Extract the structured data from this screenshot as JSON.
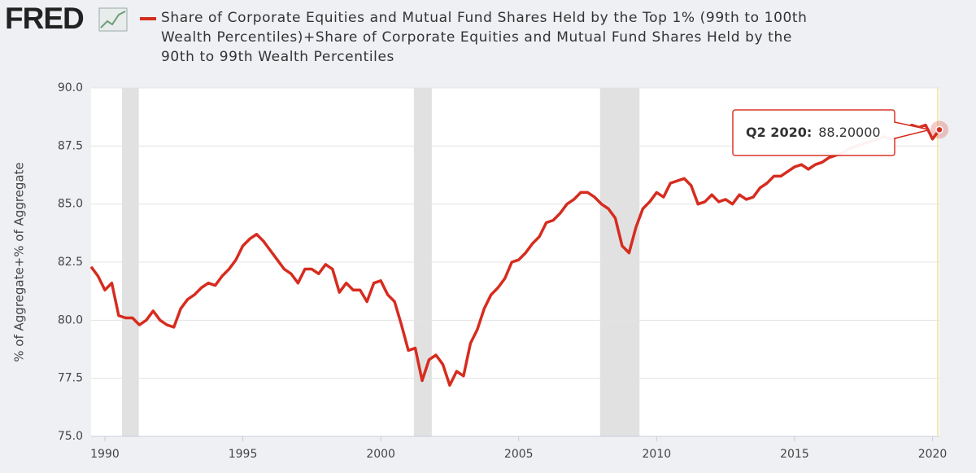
{
  "logo": "FRED",
  "chart_data": {
    "type": "line",
    "title": "Share of Corporate Equities and Mutual Fund Shares Held by the Top 1% (99th to 100th Wealth Percentiles)+Share of Corporate Equities and Mutual Fund Shares Held by the 90th to 99th Wealth Percentiles",
    "y_label": "% of Aggregate+% of Aggregate",
    "color": "#d62c1f",
    "x": [
      1989.5,
      1989.75,
      1990,
      1990.25,
      1990.5,
      1990.75,
      1991,
      1991.25,
      1991.5,
      1991.75,
      1992,
      1992.25,
      1992.5,
      1992.75,
      1993,
      1993.25,
      1993.5,
      1993.75,
      1994,
      1994.25,
      1994.5,
      1994.75,
      1995,
      1995.25,
      1995.5,
      1995.75,
      1996,
      1996.25,
      1996.5,
      1996.75,
      1997,
      1997.25,
      1997.5,
      1997.75,
      1998,
      1998.25,
      1998.5,
      1998.75,
      1999,
      1999.25,
      1999.5,
      1999.75,
      2000,
      2000.25,
      2000.5,
      2000.75,
      2001,
      2001.25,
      2001.5,
      2001.75,
      2002,
      2002.25,
      2002.5,
      2002.75,
      2003,
      2003.25,
      2003.5,
      2003.75,
      2004,
      2004.25,
      2004.5,
      2004.75,
      2005,
      2005.25,
      2005.5,
      2005.75,
      2006,
      2006.25,
      2006.5,
      2006.75,
      2007,
      2007.25,
      2007.5,
      2007.75,
      2008,
      2008.25,
      2008.5,
      2008.75,
      2009,
      2009.25,
      2009.5,
      2009.75,
      2010,
      2010.25,
      2010.5,
      2010.75,
      2011,
      2011.25,
      2011.5,
      2011.75,
      2012,
      2012.25,
      2012.5,
      2012.75,
      2013,
      2013.25,
      2013.5,
      2013.75,
      2014,
      2014.25,
      2014.5,
      2014.75,
      2015,
      2015.25,
      2015.5,
      2015.75,
      2016,
      2016.25,
      2016.5,
      2016.75,
      2017,
      2017.25,
      2017.5,
      2017.75,
      2018,
      2018.25,
      2018.5,
      2018.75,
      2019,
      2019.25,
      2019.5,
      2019.75,
      2020,
      2020.25
    ],
    "values": [
      82.3,
      81.9,
      81.3,
      81.6,
      80.2,
      80.1,
      80.1,
      79.8,
      80.0,
      80.4,
      80.0,
      79.8,
      79.7,
      80.5,
      80.9,
      81.1,
      81.4,
      81.6,
      81.5,
      81.9,
      82.2,
      82.6,
      83.2,
      83.5,
      83.7,
      83.4,
      83.0,
      82.6,
      82.2,
      82.0,
      81.6,
      82.2,
      82.2,
      82.0,
      82.4,
      82.2,
      81.2,
      81.6,
      81.3,
      81.3,
      80.8,
      81.6,
      81.7,
      81.1,
      80.8,
      79.8,
      78.7,
      78.8,
      77.4,
      78.3,
      78.5,
      78.1,
      77.2,
      77.8,
      77.6,
      79.0,
      79.6,
      80.5,
      81.1,
      81.4,
      81.8,
      82.5,
      82.6,
      82.9,
      83.3,
      83.6,
      84.2,
      84.3,
      84.6,
      85.0,
      85.2,
      85.5,
      85.5,
      85.3,
      85.0,
      84.8,
      84.4,
      83.2,
      82.9,
      84.0,
      84.8,
      85.1,
      85.5,
      85.3,
      85.9,
      86.0,
      86.1,
      85.8,
      85.0,
      85.1,
      85.4,
      85.1,
      85.2,
      85.0,
      85.4,
      85.2,
      85.3,
      85.7,
      85.9,
      86.2,
      86.2,
      86.4,
      86.6,
      86.7,
      86.5,
      86.7,
      86.8,
      87.0,
      87.1,
      87.2,
      87.4,
      87.5,
      87.6,
      87.7,
      87.8,
      87.9,
      87.8,
      87.9,
      88.2,
      88.4,
      88.3,
      88.4,
      87.8,
      88.2
    ],
    "xlim": [
      1989.5,
      2020.25
    ],
    "xticks": [
      1990,
      1995,
      2000,
      2005,
      2010,
      2015,
      2020
    ],
    "ylim": [
      75,
      90
    ],
    "yticks": [
      {
        "value": 75,
        "label": "75.0"
      },
      {
        "value": 77.5,
        "label": "77.5"
      },
      {
        "value": 80,
        "label": "80.0"
      },
      {
        "value": 82.5,
        "label": "82.5"
      },
      {
        "value": 85,
        "label": "85.0"
      },
      {
        "value": 87.5,
        "label": "87.5"
      },
      {
        "value": 90,
        "label": "90.0"
      }
    ],
    "grid": true,
    "shaded_ranges": [
      [
        1990.62,
        1991.23
      ],
      [
        2001.2,
        2001.85
      ],
      [
        2007.95,
        2009.38
      ]
    ],
    "tooltip": {
      "label": "Q2 2020:",
      "value_label": "88.20000"
    }
  }
}
